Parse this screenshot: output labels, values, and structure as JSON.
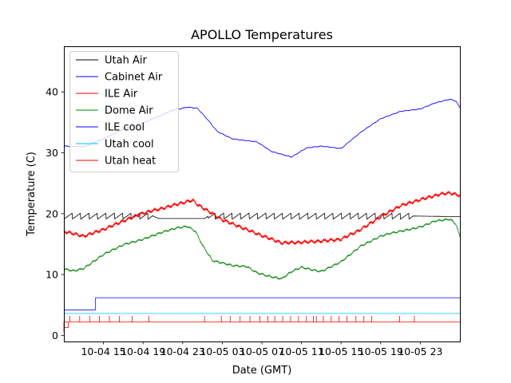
{
  "chart_data": {
    "type": "line",
    "title": "APOLLO Temperatures",
    "xlabel": "Date (GMT)",
    "ylabel": "Temperature (C)",
    "grid": false,
    "legend_position": "upper-left",
    "x_unit": "hours since 10-04 11:00 GMT",
    "xlim": [
      0,
      40
    ],
    "ylim": [
      -1,
      47.5
    ],
    "x_ticks": [
      {
        "x": 4,
        "label": "10-04 15"
      },
      {
        "x": 8,
        "label": "10-04 19"
      },
      {
        "x": 12,
        "label": "10-04 23"
      },
      {
        "x": 16,
        "label": "10-05 03"
      },
      {
        "x": 20,
        "label": "10-05 07"
      },
      {
        "x": 24,
        "label": "10-05 11"
      },
      {
        "x": 28,
        "label": "10-05 15"
      },
      {
        "x": 32,
        "label": "10-05 19"
      },
      {
        "x": 36,
        "label": "10-05 23"
      }
    ],
    "y_ticks": [
      {
        "y": 0,
        "label": "0"
      },
      {
        "y": 10,
        "label": "10"
      },
      {
        "y": 20,
        "label": "20"
      },
      {
        "y": 30,
        "label": "30"
      },
      {
        "y": 40,
        "label": "40"
      }
    ],
    "series": [
      {
        "name": "Utah Air",
        "color": "#000000",
        "style": "sawtooth",
        "x": [
          0,
          9,
          9.6,
          14.2,
          14.6,
          35.2,
          35.6,
          40
        ],
        "y": [
          19.6,
          19.6,
          19.2,
          19.2,
          19.6,
          19.6,
          19.6,
          19.5
        ],
        "osc_ranges": [
          [
            0,
            9
          ],
          [
            14.6,
            35.2
          ]
        ],
        "osc_period": 0.85,
        "osc_amp": 1.0
      },
      {
        "name": "Cabinet Air",
        "color": "#0000ff",
        "x": [
          0,
          2,
          4,
          6,
          8,
          10,
          11,
          12.5,
          13.5,
          14.5,
          15.5,
          17,
          18.5,
          19.5,
          21,
          23,
          24.5,
          26,
          28,
          30,
          32,
          34,
          36,
          37.5,
          39,
          39.6,
          40
        ],
        "y": [
          31.1,
          31.0,
          32.3,
          33.9,
          34.9,
          36.3,
          37.0,
          37.5,
          37.3,
          35.5,
          33.5,
          32.3,
          32.0,
          31.8,
          30.2,
          29.3,
          30.8,
          31.1,
          30.7,
          33.4,
          35.6,
          36.8,
          37.2,
          38.2,
          38.8,
          38.5,
          37.4
        ]
      },
      {
        "name": "ILE Air",
        "color": "#ff0000",
        "x": [
          0,
          2,
          4,
          6,
          8,
          10,
          12,
          13,
          13.5,
          14.5,
          16,
          18,
          20,
          22,
          24,
          26,
          28,
          30,
          32,
          34,
          36,
          38,
          39,
          40
        ],
        "y": [
          17.1,
          16.3,
          17.4,
          18.8,
          20.1,
          20.9,
          21.8,
          22.2,
          21.5,
          20.5,
          19.0,
          17.7,
          16.4,
          15.2,
          15.3,
          15.5,
          15.8,
          17.4,
          19.5,
          21.3,
          22.3,
          23.2,
          23.4,
          23.0
        ]
      },
      {
        "name": "Dome Air",
        "color": "#008000",
        "x": [
          0,
          1,
          2,
          4,
          6,
          8,
          10,
          11.5,
          12.5,
          13.3,
          14,
          15,
          17,
          18.5,
          19.5,
          20.5,
          22,
          23,
          24,
          25,
          26,
          28,
          30,
          32,
          33,
          34,
          36,
          37.5,
          39,
          39.6,
          40
        ],
        "y": [
          10.9,
          10.6,
          11.0,
          13.3,
          14.9,
          15.8,
          17.0,
          17.7,
          17.9,
          17.1,
          14.8,
          12.3,
          11.5,
          11.3,
          10.3,
          9.8,
          9.3,
          10.5,
          11.2,
          10.8,
          10.5,
          12.1,
          14.7,
          16.3,
          16.8,
          17.1,
          17.8,
          18.8,
          19.1,
          18.3,
          16.2
        ]
      },
      {
        "name": "ILE cool",
        "color": "#0000ff",
        "style": "step",
        "x": [
          0,
          3.2,
          3.2,
          40
        ],
        "y": [
          4.2,
          4.2,
          6.2,
          6.2
        ]
      },
      {
        "name": "Utah cool",
        "color": "#00c0ff",
        "x": [
          0,
          40
        ],
        "y": [
          3.6,
          3.6
        ]
      },
      {
        "name": "Utah heat",
        "color": "#ff0000",
        "style": "pulses",
        "base": 2.2,
        "pulse_top": 3.2,
        "start_step": [
          0,
          0.55,
          1.3
        ],
        "pulse_times": [
          0.6,
          1.6,
          2.6,
          3.6,
          4.6,
          5.6,
          6.9,
          8.6,
          14.2,
          15.9,
          16.8,
          17.8,
          18.8,
          19.8,
          20.6,
          21.3,
          22.1,
          22.9,
          23.7,
          24.5,
          25.2,
          25.5,
          26.2,
          27.0,
          27.8,
          28.6,
          29.5,
          30.3,
          31.1,
          33.9,
          35.4
        ]
      }
    ]
  }
}
